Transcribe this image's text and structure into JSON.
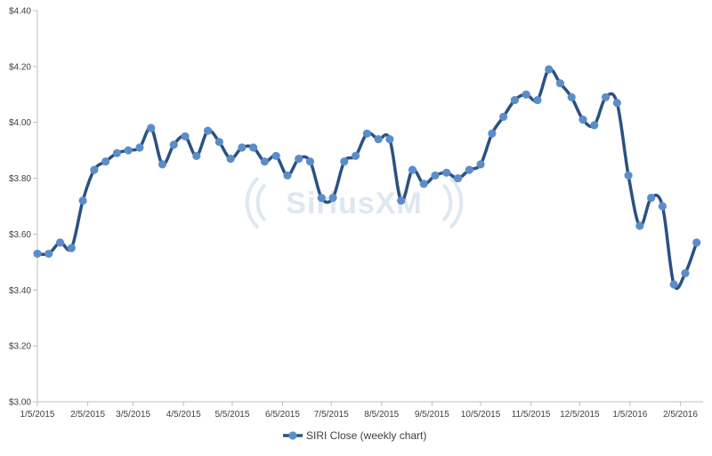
{
  "chart_data": {
    "type": "line",
    "title": "",
    "xlabel": "",
    "ylabel": "",
    "ylim": [
      3.0,
      4.4
    ],
    "yticks": [
      3.0,
      3.2,
      3.4,
      3.6,
      3.8,
      4.0,
      4.2,
      4.4
    ],
    "ytick_labels": [
      "$3.00",
      "$3.20",
      "$3.40",
      "$3.60",
      "$3.80",
      "$4.00",
      "$4.20",
      "$4.40"
    ],
    "xtick_labels": [
      "1/5/2015",
      "2/5/2015",
      "3/5/2015",
      "4/5/2015",
      "5/5/2015",
      "6/5/2015",
      "7/5/2015",
      "8/5/2015",
      "9/5/2015",
      "10/5/2015",
      "11/5/2015",
      "12/5/2015",
      "1/5/2016",
      "2/5/2016"
    ],
    "xtick_dates": [
      "2015-01-05",
      "2015-02-05",
      "2015-03-05",
      "2015-04-05",
      "2015-05-05",
      "2015-06-05",
      "2015-07-05",
      "2015-08-05",
      "2015-09-05",
      "2015-10-05",
      "2015-11-05",
      "2015-12-05",
      "2016-01-05",
      "2016-02-05"
    ],
    "x_range": [
      "2015-01-05",
      "2016-02-19"
    ],
    "grid": false,
    "legend_position": "bottom",
    "watermark": "SiriusXM",
    "series": [
      {
        "name": "SIRI Close (weekly chart)",
        "color": "#2b5182",
        "marker_color": "#5b8ec9",
        "x": [
          "2015-01-05",
          "2015-01-12",
          "2015-01-19",
          "2015-01-26",
          "2015-02-02",
          "2015-02-09",
          "2015-02-16",
          "2015-02-23",
          "2015-03-02",
          "2015-03-09",
          "2015-03-16",
          "2015-03-23",
          "2015-03-30",
          "2015-04-06",
          "2015-04-13",
          "2015-04-20",
          "2015-04-27",
          "2015-05-04",
          "2015-05-11",
          "2015-05-18",
          "2015-05-25",
          "2015-06-01",
          "2015-06-08",
          "2015-06-15",
          "2015-06-22",
          "2015-06-29",
          "2015-07-06",
          "2015-07-13",
          "2015-07-20",
          "2015-07-27",
          "2015-08-03",
          "2015-08-10",
          "2015-08-17",
          "2015-08-24",
          "2015-08-31",
          "2015-09-07",
          "2015-09-14",
          "2015-09-21",
          "2015-09-28",
          "2015-10-05",
          "2015-10-12",
          "2015-10-19",
          "2015-10-26",
          "2015-11-02",
          "2015-11-09",
          "2015-11-16",
          "2015-11-23",
          "2015-11-30",
          "2015-12-07",
          "2015-12-14",
          "2015-12-21",
          "2015-12-28",
          "2016-01-04",
          "2016-01-11",
          "2016-01-18",
          "2016-01-25",
          "2016-02-01",
          "2016-02-08",
          "2016-02-15"
        ],
        "values": [
          3.53,
          3.53,
          3.57,
          3.55,
          3.72,
          3.83,
          3.86,
          3.89,
          3.9,
          3.91,
          3.98,
          3.85,
          3.92,
          3.95,
          3.88,
          3.97,
          3.93,
          3.87,
          3.91,
          3.91,
          3.86,
          3.88,
          3.81,
          3.87,
          3.86,
          3.73,
          3.73,
          3.86,
          3.88,
          3.96,
          3.94,
          3.94,
          3.72,
          3.83,
          3.78,
          3.81,
          3.82,
          3.8,
          3.83,
          3.85,
          3.96,
          4.02,
          4.08,
          4.1,
          4.08,
          4.19,
          4.14,
          4.09,
          4.01,
          3.99,
          4.09,
          4.07,
          3.81,
          3.63,
          3.73,
          3.7,
          3.42,
          3.46,
          3.57
        ]
      }
    ]
  }
}
